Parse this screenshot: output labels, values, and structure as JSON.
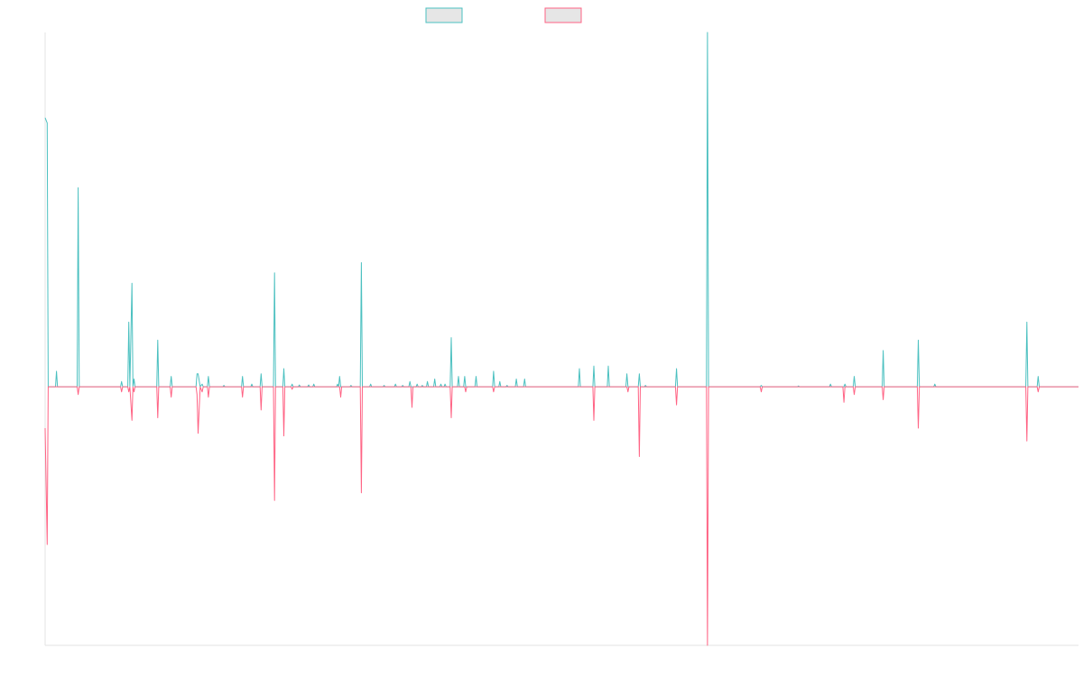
{
  "chart_data": {
    "type": "line",
    "title": "",
    "xlabel": "",
    "ylabel": "",
    "grid": false,
    "legend_position": "top-center",
    "xlim": [
      0,
      1000
    ],
    "ylim": [
      -100,
      137
    ],
    "series": [
      {
        "color": "#4bc0c0",
        "legend_fill": "#e6e6e6",
        "points": [
          [
            0,
            104
          ],
          [
            2,
            102
          ],
          [
            3,
            0
          ],
          [
            10,
            0
          ],
          [
            11,
            6
          ],
          [
            12,
            0
          ],
          [
            31,
            0
          ],
          [
            32,
            77
          ],
          [
            33,
            0
          ],
          [
            73,
            0
          ],
          [
            74,
            2
          ],
          [
            75,
            0
          ],
          [
            80,
            0
          ],
          [
            81,
            25
          ],
          [
            82,
            0
          ],
          [
            84,
            40
          ],
          [
            85,
            0
          ],
          [
            86,
            3
          ],
          [
            87,
            0
          ],
          [
            108,
            0
          ],
          [
            109,
            18
          ],
          [
            110,
            0
          ],
          [
            121,
            0
          ],
          [
            122,
            4
          ],
          [
            123,
            0
          ],
          [
            146,
            0
          ],
          [
            147,
            5
          ],
          [
            148,
            5
          ],
          [
            150,
            0
          ],
          [
            152,
            1
          ],
          [
            153,
            0
          ],
          [
            157,
            0
          ],
          [
            158,
            4
          ],
          [
            159,
            0
          ],
          [
            172,
            0
          ],
          [
            173,
            0.5
          ],
          [
            174,
            0
          ],
          [
            190,
            0
          ],
          [
            191,
            4
          ],
          [
            192,
            0
          ],
          [
            199,
            0
          ],
          [
            200,
            1
          ],
          [
            201,
            0
          ],
          [
            208,
            0
          ],
          [
            209,
            5
          ],
          [
            210,
            0
          ],
          [
            221,
            0
          ],
          [
            222,
            44
          ],
          [
            223,
            0
          ],
          [
            230,
            0
          ],
          [
            231,
            7
          ],
          [
            232,
            0
          ],
          [
            238,
            0
          ],
          [
            239,
            1
          ],
          [
            240,
            0
          ],
          [
            245,
            0
          ],
          [
            246,
            0.7
          ],
          [
            247,
            0
          ],
          [
            254,
            0
          ],
          [
            255,
            0.7
          ],
          [
            256,
            0
          ],
          [
            259,
            0
          ],
          [
            260,
            1
          ],
          [
            261,
            0
          ],
          [
            282,
            0
          ],
          [
            283,
            1
          ],
          [
            284,
            0
          ],
          [
            285,
            4
          ],
          [
            286,
            0
          ],
          [
            295,
            0
          ],
          [
            296,
            0.5
          ],
          [
            297,
            0
          ],
          [
            305,
            0
          ],
          [
            306,
            48
          ],
          [
            307,
            0
          ],
          [
            314,
            0
          ],
          [
            315,
            1
          ],
          [
            316,
            0
          ],
          [
            327,
            0
          ],
          [
            328,
            0.5
          ],
          [
            329,
            0
          ],
          [
            338,
            0
          ],
          [
            339,
            1
          ],
          [
            340,
            0
          ],
          [
            345,
            0
          ],
          [
            346,
            0.5
          ],
          [
            347,
            0
          ],
          [
            352,
            0
          ],
          [
            353,
            2
          ],
          [
            354,
            0
          ],
          [
            359,
            0
          ],
          [
            360,
            1
          ],
          [
            361,
            0
          ],
          [
            364,
            0
          ],
          [
            365,
            0.5
          ],
          [
            366,
            0
          ],
          [
            369,
            0
          ],
          [
            370,
            2
          ],
          [
            371,
            0
          ],
          [
            376,
            0
          ],
          [
            377,
            3
          ],
          [
            378,
            0
          ],
          [
            382,
            0
          ],
          [
            383,
            1
          ],
          [
            384,
            0
          ],
          [
            386,
            0
          ],
          [
            387,
            1
          ],
          [
            388,
            0
          ],
          [
            392,
            0
          ],
          [
            393,
            19
          ],
          [
            394,
            0
          ],
          [
            399,
            0
          ],
          [
            400,
            4
          ],
          [
            401,
            0
          ],
          [
            405,
            0
          ],
          [
            406,
            4
          ],
          [
            407,
            0
          ],
          [
            416,
            0
          ],
          [
            417,
            4
          ],
          [
            418,
            0
          ],
          [
            433,
            0
          ],
          [
            434,
            6
          ],
          [
            435,
            0
          ],
          [
            439,
            0
          ],
          [
            440,
            2
          ],
          [
            441,
            0
          ],
          [
            446,
            0
          ],
          [
            447,
            0.5
          ],
          [
            448,
            0
          ],
          [
            455,
            0
          ],
          [
            456,
            3
          ],
          [
            457,
            0
          ],
          [
            463,
            0
          ],
          [
            464,
            3
          ],
          [
            465,
            0
          ],
          [
            516,
            0
          ],
          [
            517,
            7
          ],
          [
            518,
            0
          ],
          [
            530,
            0
          ],
          [
            531,
            8
          ],
          [
            532,
            0
          ],
          [
            544,
            0
          ],
          [
            545,
            8
          ],
          [
            546,
            0
          ],
          [
            562,
            0
          ],
          [
            563,
            5
          ],
          [
            564,
            0
          ],
          [
            574,
            0
          ],
          [
            575,
            5
          ],
          [
            576,
            0
          ],
          [
            580,
            0
          ],
          [
            581,
            0.5
          ],
          [
            582,
            0
          ],
          [
            610,
            0
          ],
          [
            611,
            7
          ],
          [
            612,
            0
          ],
          [
            640,
            0
          ],
          [
            641,
            137
          ],
          [
            642,
            0
          ],
          [
            692,
            0
          ],
          [
            693,
            0.5
          ],
          [
            694,
            0
          ],
          [
            728,
            0
          ],
          [
            729,
            0.3
          ],
          [
            730,
            0
          ],
          [
            759,
            0
          ],
          [
            760,
            1
          ],
          [
            761,
            0
          ],
          [
            773,
            0
          ],
          [
            774,
            1
          ],
          [
            775,
            0
          ],
          [
            782,
            0
          ],
          [
            783,
            4
          ],
          [
            784,
            0
          ],
          [
            810,
            0
          ],
          [
            811,
            14
          ],
          [
            812,
            0
          ],
          [
            844,
            0
          ],
          [
            845,
            18
          ],
          [
            846,
            0
          ],
          [
            860,
            0
          ],
          [
            861,
            1
          ],
          [
            862,
            0
          ],
          [
            949,
            0
          ],
          [
            950,
            25
          ],
          [
            951,
            0
          ],
          [
            960,
            0
          ],
          [
            961,
            4
          ],
          [
            962,
            0
          ],
          [
            1000,
            0
          ]
        ]
      },
      {
        "color": "#ff6384",
        "legend_fill": "#e6e6e6",
        "points": [
          [
            0,
            -16
          ],
          [
            2,
            -61
          ],
          [
            3,
            0
          ],
          [
            31,
            0
          ],
          [
            32,
            -3
          ],
          [
            33,
            0
          ],
          [
            73,
            0
          ],
          [
            74,
            -2
          ],
          [
            75,
            0
          ],
          [
            80,
            0
          ],
          [
            81,
            -2
          ],
          [
            82,
            0
          ],
          [
            84,
            -13
          ],
          [
            85,
            0
          ],
          [
            86,
            -2
          ],
          [
            87,
            0
          ],
          [
            108,
            0
          ],
          [
            109,
            -12
          ],
          [
            110,
            0
          ],
          [
            121,
            0
          ],
          [
            122,
            -4
          ],
          [
            123,
            0
          ],
          [
            146,
            0
          ],
          [
            147,
            -3
          ],
          [
            148,
            -18
          ],
          [
            150,
            0
          ],
          [
            152,
            -2
          ],
          [
            153,
            0
          ],
          [
            157,
            0
          ],
          [
            158,
            -4
          ],
          [
            159,
            0
          ],
          [
            190,
            0
          ],
          [
            191,
            -4
          ],
          [
            192,
            0
          ],
          [
            208,
            0
          ],
          [
            209,
            -9
          ],
          [
            210,
            0
          ],
          [
            221,
            0
          ],
          [
            222,
            -44
          ],
          [
            223,
            0
          ],
          [
            230,
            0
          ],
          [
            231,
            -19
          ],
          [
            232,
            0
          ],
          [
            238,
            0
          ],
          [
            239,
            -1
          ],
          [
            240,
            0
          ],
          [
            285,
            0
          ],
          [
            286,
            -4
          ],
          [
            287,
            0
          ],
          [
            305,
            0
          ],
          [
            306,
            -41
          ],
          [
            307,
            0
          ],
          [
            354,
            0
          ],
          [
            355,
            -8
          ],
          [
            356,
            0
          ],
          [
            392,
            0
          ],
          [
            393,
            -12
          ],
          [
            394,
            0
          ],
          [
            406,
            0
          ],
          [
            407,
            -2
          ],
          [
            408,
            0
          ],
          [
            433,
            0
          ],
          [
            434,
            -2
          ],
          [
            435,
            0
          ],
          [
            530,
            0
          ],
          [
            531,
            -13
          ],
          [
            532,
            0
          ],
          [
            563,
            0
          ],
          [
            564,
            -2
          ],
          [
            565,
            0
          ],
          [
            574,
            0
          ],
          [
            575,
            -27
          ],
          [
            576,
            0
          ],
          [
            610,
            0
          ],
          [
            611,
            -7
          ],
          [
            612,
            0
          ],
          [
            640,
            0
          ],
          [
            641,
            -100
          ],
          [
            642,
            0
          ],
          [
            692,
            0
          ],
          [
            693,
            -2
          ],
          [
            694,
            0
          ],
          [
            772,
            0
          ],
          [
            773,
            -6
          ],
          [
            774,
            0
          ],
          [
            782,
            0
          ],
          [
            783,
            -3
          ],
          [
            784,
            0
          ],
          [
            810,
            0
          ],
          [
            811,
            -5
          ],
          [
            812,
            0
          ],
          [
            844,
            0
          ],
          [
            845,
            -16
          ],
          [
            846,
            0
          ],
          [
            949,
            0
          ],
          [
            950,
            -21
          ],
          [
            951,
            0
          ],
          [
            960,
            0
          ],
          [
            961,
            -2
          ],
          [
            962,
            0
          ],
          [
            1000,
            0
          ]
        ]
      }
    ]
  }
}
